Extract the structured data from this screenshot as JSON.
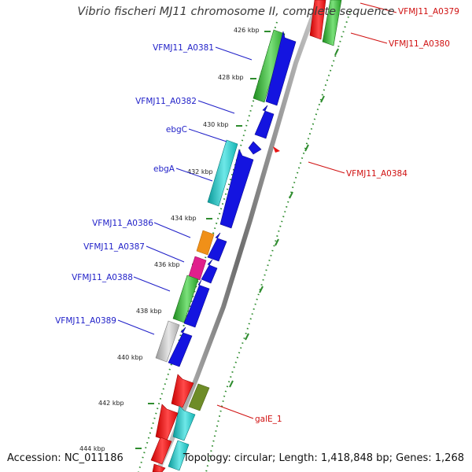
{
  "title": "Vibrio fischeri MJ11 chromosome II, complete sequence",
  "footer": {
    "accession": "Accession: NC_011186",
    "summary": "Topology: circular; Length: 1,418,848 bp; Genes: 1,268"
  },
  "kbp_ticks": [
    "426 kbp",
    "428 kbp",
    "430 kbp",
    "432 kbp",
    "434 kbp",
    "436 kbp",
    "438 kbp",
    "440 kbp",
    "442 kbp",
    "444 kbp"
  ],
  "gene_labels_plus": [
    "VFMJ11_A0381",
    "VFMJ11_A0382",
    "ebgC",
    "ebgA",
    "VFMJ11_A0386",
    "VFMJ11_A0387",
    "VFMJ11_A0388",
    "VFMJ11_A0389"
  ],
  "gene_labels_minus": [
    "VFMJ11_A0379",
    "VFMJ11_A0380",
    "VFMJ11_A0384",
    "galE_1"
  ],
  "colors": {
    "plus_label": "#1f1fc8",
    "minus_label": "#d01010",
    "cds_blue": "#1414e0",
    "green": "#3cc83c",
    "cyan": "#1ec8c8",
    "orange": "#f09018",
    "magenta": "#e0208c",
    "gray": "#bcbcbc",
    "red": "#e81414",
    "olive": "#6e8c28",
    "tick_green": "#2e8c2e",
    "backbone": "#8a8a8a"
  }
}
